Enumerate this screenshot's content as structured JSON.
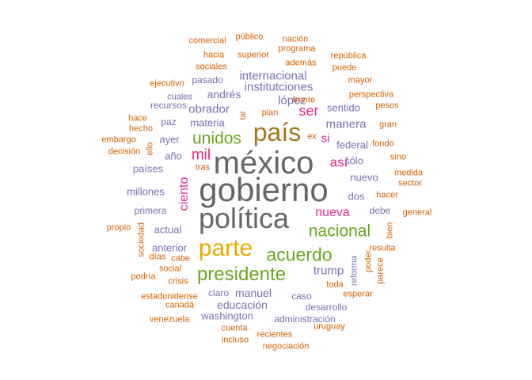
{
  "palette": {
    "gray": "#666666",
    "brown": "#a6761d",
    "goldenrod": "#e6ab02",
    "green": "#66a61e",
    "magenta": "#e7298a",
    "purple": "#7570b3",
    "orange": "#d95f02"
  },
  "words": [
    {
      "text": "méxico",
      "color": "gray",
      "weight": 10,
      "vertical": false
    },
    {
      "text": "gobierno",
      "color": "gray",
      "weight": 10,
      "vertical": false
    },
    {
      "text": "política",
      "color": "gray",
      "weight": 9,
      "vertical": false
    },
    {
      "text": "país",
      "color": "brown",
      "weight": 8,
      "vertical": false
    },
    {
      "text": "parte",
      "color": "goldenrod",
      "weight": 7,
      "vertical": false
    },
    {
      "text": "presidente",
      "color": "green",
      "weight": 6,
      "vertical": false
    },
    {
      "text": "acuerdo",
      "color": "green",
      "weight": 6,
      "vertical": false
    },
    {
      "text": "nacional",
      "color": "green",
      "weight": 5,
      "vertical": false
    },
    {
      "text": "unidos",
      "color": "green",
      "weight": 5,
      "vertical": false
    },
    {
      "text": "mil",
      "color": "magenta",
      "weight": 5,
      "vertical": false
    },
    {
      "text": "ser",
      "color": "magenta",
      "weight": 4,
      "vertical": false
    },
    {
      "text": "así",
      "color": "magenta",
      "weight": 4,
      "vertical": false
    },
    {
      "text": "nueva",
      "color": "magenta",
      "weight": 4,
      "vertical": false
    },
    {
      "text": "ciento",
      "color": "magenta",
      "weight": 4,
      "vertical": true
    },
    {
      "text": "trump",
      "color": "purple",
      "weight": 3,
      "vertical": false
    },
    {
      "text": "si",
      "color": "magenta",
      "weight": 3,
      "vertical": false
    },
    {
      "text": "obrador",
      "color": "purple",
      "weight": 3,
      "vertical": false
    },
    {
      "text": "manera",
      "color": "purple",
      "weight": 3,
      "vertical": false
    },
    {
      "text": "institutciones",
      "color": "purple",
      "weight": 2,
      "vertical": false
    },
    {
      "text": "internacional",
      "color": "purple",
      "weight": 2,
      "vertical": false
    },
    {
      "text": "lópez",
      "color": "purple",
      "weight": 2,
      "vertical": false
    },
    {
      "text": "andrés",
      "color": "purple",
      "weight": 2,
      "vertical": false
    },
    {
      "text": "sentido",
      "color": "purple",
      "weight": 2,
      "vertical": false
    },
    {
      "text": "materia",
      "color": "purple",
      "weight": 2,
      "vertical": false
    },
    {
      "text": "ayer",
      "color": "purple",
      "weight": 2,
      "vertical": false
    },
    {
      "text": "año",
      "color": "purple",
      "weight": 2,
      "vertical": false
    },
    {
      "text": "federal",
      "color": "purple",
      "weight": 2,
      "vertical": false
    },
    {
      "text": "sólo",
      "color": "purple",
      "weight": 2,
      "vertical": false
    },
    {
      "text": "nuevo",
      "color": "purple",
      "weight": 2,
      "vertical": false
    },
    {
      "text": "países",
      "color": "purple",
      "weight": 2,
      "vertical": false
    },
    {
      "text": "dos",
      "color": "purple",
      "weight": 2,
      "vertical": false
    },
    {
      "text": "millones",
      "color": "purple",
      "weight": 2,
      "vertical": false
    },
    {
      "text": "actual",
      "color": "purple",
      "weight": 2,
      "vertical": false
    },
    {
      "text": "anterior",
      "color": "purple",
      "weight": 2,
      "vertical": false
    },
    {
      "text": "manuel",
      "color": "purple",
      "weight": 2,
      "vertical": false
    },
    {
      "text": "educación",
      "color": "purple",
      "weight": 2,
      "vertical": false
    },
    {
      "text": "washington",
      "color": "purple",
      "weight": 2,
      "vertical": false
    },
    {
      "text": "pasado",
      "color": "purple",
      "weight": 1,
      "vertical": false
    },
    {
      "text": "recursos",
      "color": "purple",
      "weight": 1,
      "vertical": false
    },
    {
      "text": "paz",
      "color": "purple",
      "weight": 1,
      "vertical": false
    },
    {
      "text": "primera",
      "color": "purple",
      "weight": 1,
      "vertical": false
    },
    {
      "text": "claro",
      "color": "purple",
      "weight": 1,
      "vertical": false
    },
    {
      "text": "caso",
      "color": "purple",
      "weight": 1,
      "vertical": false
    },
    {
      "text": "desarrollo",
      "color": "purple",
      "weight": 1,
      "vertical": false
    },
    {
      "text": "administración",
      "color": "purple",
      "weight": 1,
      "vertical": false
    },
    {
      "text": "debe",
      "color": "purple",
      "weight": 1,
      "vertical": false
    },
    {
      "text": "cuales",
      "color": "purple",
      "weight": 1,
      "vertical": false
    },
    {
      "text": "reforma",
      "color": "purple",
      "weight": 1,
      "vertical": true
    },
    {
      "text": "perspectiva",
      "color": "orange",
      "weight": 1,
      "vertical": false
    },
    {
      "text": "mayor",
      "color": "orange",
      "weight": 1,
      "vertical": false
    },
    {
      "text": "frente",
      "color": "orange",
      "weight": 1,
      "vertical": false
    },
    {
      "text": "plan",
      "color": "orange",
      "weight": 1,
      "vertical": false
    },
    {
      "text": "ex",
      "color": "orange",
      "weight": 1,
      "vertical": false
    },
    {
      "text": "tras",
      "color": "orange",
      "weight": 1,
      "vertical": false
    },
    {
      "text": "hacer",
      "color": "orange",
      "weight": 1,
      "vertical": false
    },
    {
      "text": "esperar",
      "color": "orange",
      "weight": 1,
      "vertical": false
    },
    {
      "text": "toda",
      "color": "orange",
      "weight": 1,
      "vertical": false
    },
    {
      "text": "social",
      "color": "orange",
      "weight": 1,
      "vertical": false
    },
    {
      "text": "cabe",
      "color": "orange",
      "weight": 1,
      "vertical": false
    },
    {
      "text": "crisis",
      "color": "orange",
      "weight": 1,
      "vertical": false
    },
    {
      "text": "estadunidense",
      "color": "orange",
      "weight": 1,
      "vertical": false
    },
    {
      "text": "canadá",
      "color": "orange",
      "weight": 1,
      "vertical": false
    },
    {
      "text": "venezuela",
      "color": "orange",
      "weight": 1,
      "vertical": false
    },
    {
      "text": "cuenta",
      "color": "orange",
      "weight": 1,
      "vertical": false
    },
    {
      "text": "incluso",
      "color": "orange",
      "weight": 1,
      "vertical": false
    },
    {
      "text": "recientes",
      "color": "orange",
      "weight": 1,
      "vertical": false
    },
    {
      "text": "negociación",
      "color": "orange",
      "weight": 1,
      "vertical": false
    },
    {
      "text": "uruguay",
      "color": "orange",
      "weight": 1,
      "vertical": false
    },
    {
      "text": "comercial",
      "color": "orange",
      "weight": 1,
      "vertical": false
    },
    {
      "text": "público",
      "color": "orange",
      "weight": 1,
      "vertical": false
    },
    {
      "text": "nación",
      "color": "orange",
      "weight": 1,
      "vertical": false
    },
    {
      "text": "hacia",
      "color": "orange",
      "weight": 1,
      "vertical": false
    },
    {
      "text": "superior",
      "color": "orange",
      "weight": 1,
      "vertical": false
    },
    {
      "text": "programa",
      "color": "orange",
      "weight": 1,
      "vertical": false
    },
    {
      "text": "república",
      "color": "orange",
      "weight": 1,
      "vertical": false
    },
    {
      "text": "sociales",
      "color": "orange",
      "weight": 1,
      "vertical": false
    },
    {
      "text": "además",
      "color": "orange",
      "weight": 1,
      "vertical": false
    },
    {
      "text": "puede",
      "color": "orange",
      "weight": 1,
      "vertical": false
    },
    {
      "text": "ejecutivo",
      "color": "orange",
      "weight": 1,
      "vertical": false
    },
    {
      "text": "pesos",
      "color": "orange",
      "weight": 1,
      "vertical": false
    },
    {
      "text": "hace",
      "color": "orange",
      "weight": 1,
      "vertical": false
    },
    {
      "text": "hecho",
      "color": "orange",
      "weight": 1,
      "vertical": false
    },
    {
      "text": "gran",
      "color": "orange",
      "weight": 1,
      "vertical": false
    },
    {
      "text": "embargo",
      "color": "orange",
      "weight": 1,
      "vertical": false
    },
    {
      "text": "fondo",
      "color": "orange",
      "weight": 1,
      "vertical": false
    },
    {
      "text": "decisión",
      "color": "orange",
      "weight": 1,
      "vertical": false
    },
    {
      "text": "ello",
      "color": "orange",
      "weight": 1,
      "vertical": true
    },
    {
      "text": "sino",
      "color": "orange",
      "weight": 1,
      "vertical": false
    },
    {
      "text": "medida",
      "color": "orange",
      "weight": 1,
      "vertical": false
    },
    {
      "text": "sector",
      "color": "orange",
      "weight": 1,
      "vertical": false
    },
    {
      "text": "general",
      "color": "orange",
      "weight": 1,
      "vertical": false
    },
    {
      "text": "propio",
      "color": "orange",
      "weight": 1,
      "vertical": false
    },
    {
      "text": "bien",
      "color": "orange",
      "weight": 1,
      "vertical": true
    },
    {
      "text": "resulta",
      "color": "orange",
      "weight": 1,
      "vertical": false
    },
    {
      "text": "sociedad",
      "color": "orange",
      "weight": 1,
      "vertical": true
    },
    {
      "text": "días",
      "color": "orange",
      "weight": 1,
      "vertical": false
    },
    {
      "text": "podría",
      "color": "orange",
      "weight": 1,
      "vertical": false
    },
    {
      "text": "poder",
      "color": "orange",
      "weight": 1,
      "vertical": true
    },
    {
      "text": "parece",
      "color": "orange",
      "weight": 1,
      "vertical": true
    },
    {
      "text": "tal",
      "color": "orange",
      "weight": 1,
      "vertical": true
    }
  ]
}
